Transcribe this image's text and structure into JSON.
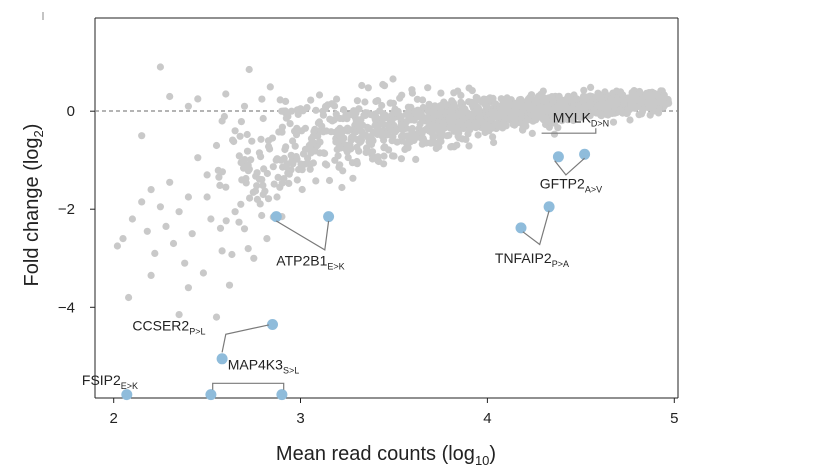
{
  "chart_data": {
    "type": "scatter",
    "title": "",
    "xlabel": {
      "main": "Mean read counts (log",
      "sub": "10",
      "end": ")"
    },
    "ylabel": {
      "main": "Fold change (log",
      "sub": "2",
      "end": ")"
    },
    "xlim": [
      1.9,
      5.02
    ],
    "ylim": [
      -5.85,
      1.9
    ],
    "xticks": [
      2,
      3,
      4,
      5
    ],
    "yticks": [
      0,
      -2,
      -4
    ],
    "reference_line_y": 0,
    "grid": false,
    "colors": {
      "background": "#c9c9c9",
      "highlight": "#8fbcdb",
      "reference": "#888888"
    },
    "background_series": {
      "name": "",
      "points": [
        [
          2.05,
          -2.6
        ],
        [
          2.02,
          -2.75
        ],
        [
          2.08,
          -3.8
        ],
        [
          2.1,
          -2.2
        ],
        [
          2.15,
          -1.85
        ],
        [
          2.18,
          -2.45
        ],
        [
          2.2,
          -1.6
        ],
        [
          2.22,
          -2.9
        ],
        [
          2.25,
          -1.95
        ],
        [
          2.28,
          -2.35
        ],
        [
          2.3,
          -1.45
        ],
        [
          2.32,
          -2.7
        ],
        [
          2.35,
          -2.05
        ],
        [
          2.38,
          -3.1
        ],
        [
          2.4,
          -1.75
        ],
        [
          2.42,
          -2.5
        ],
        [
          2.45,
          -0.95
        ],
        [
          2.48,
          -3.3
        ],
        [
          2.5,
          -1.3
        ],
        [
          2.52,
          -2.2
        ],
        [
          2.55,
          -0.7
        ],
        [
          2.58,
          -2.85
        ],
        [
          2.6,
          -1.55
        ],
        [
          2.62,
          -3.55
        ],
        [
          2.65,
          -0.4
        ],
        [
          2.68,
          -1.9
        ],
        [
          2.7,
          -2.4
        ],
        [
          2.72,
          -1.1
        ],
        [
          2.75,
          -3.0
        ],
        [
          2.78,
          -0.85
        ],
        [
          2.8,
          -1.7
        ],
        [
          2.82,
          -2.6
        ],
        [
          2.85,
          -0.55
        ],
        [
          2.88,
          -1.35
        ],
        [
          2.9,
          -2.15
        ],
        [
          2.25,
          0.9
        ],
        [
          2.15,
          -0.5
        ],
        [
          2.3,
          0.3
        ],
        [
          2.45,
          0.25
        ],
        [
          2.6,
          0.35
        ],
        [
          2.7,
          0.1
        ],
        [
          2.8,
          -0.15
        ],
        [
          2.35,
          -4.15
        ],
        [
          2.55,
          -4.2
        ],
        [
          2.4,
          -3.6
        ],
        [
          2.2,
          -3.35
        ],
        [
          2.65,
          -2.05
        ],
        [
          2.5,
          -1.75
        ],
        [
          2.58,
          -0.2
        ],
        [
          2.4,
          0.1
        ],
        [
          2.92,
          0.2
        ],
        [
          2.95,
          -0.9
        ],
        [
          2.98,
          -0.35
        ],
        [
          3.0,
          0.05
        ]
      ],
      "density_cloud": {
        "seed": 13,
        "count": 1500,
        "x_range": [
          2.55,
          4.97
        ],
        "trend_x": [
          2.6,
          3.0,
          3.4,
          3.8,
          4.2,
          4.6,
          5.0
        ],
        "trend_y": [
          -1.5,
          -0.75,
          -0.35,
          -0.15,
          0.0,
          0.12,
          0.22
        ],
        "spread_x": [
          2.6,
          3.0,
          3.4,
          3.8,
          4.2,
          4.6,
          5.0
        ],
        "spread_y": [
          0.8,
          0.52,
          0.34,
          0.24,
          0.17,
          0.12,
          0.08
        ]
      }
    },
    "highlighted_points": [
      {
        "name": "MYLK",
        "x": 4.38,
        "y": -0.93
      },
      {
        "name": "MYLK",
        "x": 4.52,
        "y": -0.88
      },
      {
        "name": "GFTP2",
        "x": 4.33,
        "y": -1.95
      },
      {
        "name": "TNFAIP2",
        "x": 4.18,
        "y": -2.38
      },
      {
        "name": "ATP2B1",
        "x": 2.87,
        "y": -2.15
      },
      {
        "name": "ATP2B1",
        "x": 3.15,
        "y": -2.15
      },
      {
        "name": "CCSER2",
        "x": 2.85,
        "y": -4.35
      },
      {
        "name": "CCSER2",
        "x": 2.58,
        "y": -5.05
      },
      {
        "name": "FSIP2",
        "x": 2.07,
        "y": -5.78
      },
      {
        "name": "MAP4K3",
        "x": 2.52,
        "y": -5.78
      },
      {
        "name": "MAP4K3",
        "x": 2.9,
        "y": -5.78
      }
    ],
    "annotations": [
      {
        "id": "mylk",
        "main": "MYLK",
        "sub": "D>N",
        "label_x": 4.35,
        "label_y": -0.23
      },
      {
        "id": "gftp2",
        "main": "GFTP2",
        "sub": "A>V",
        "label_x": 4.28,
        "label_y": -1.58
      },
      {
        "id": "tnfaip2",
        "main": "TNFAIP2",
        "sub": "P>A",
        "label_x": 4.04,
        "label_y": -3.1
      },
      {
        "id": "atp2b1",
        "main": "ATP2B1",
        "sub": "E>K",
        "label_x": 2.87,
        "label_y": -3.15
      },
      {
        "id": "ccser2",
        "main": "CCSER2",
        "sub": "P>L",
        "label_x": 2.1,
        "label_y": -4.47
      },
      {
        "id": "map4k3",
        "main": "MAP4K3",
        "sub": "S>L",
        "label_x": 2.61,
        "label_y": -5.27
      },
      {
        "id": "fsip2",
        "main": "FSIP2",
        "sub": "E>K",
        "label_x": 1.83,
        "label_y": -5.58
      }
    ],
    "leaders": [
      {
        "id": "mylk",
        "path": [
          [
            4.58,
            -0.35
          ],
          [
            4.58,
            -0.45
          ],
          [
            4.29,
            -0.45
          ]
        ]
      },
      {
        "id": "gftp2",
        "path": [
          [
            4.36,
            -1.01
          ],
          [
            4.42,
            -1.3
          ],
          [
            4.52,
            -0.96
          ]
        ]
      },
      {
        "id": "tnfaip2",
        "path": [
          [
            4.33,
            -2.03
          ],
          [
            4.28,
            -2.72
          ],
          [
            4.19,
            -2.46
          ]
        ]
      },
      {
        "id": "atp2b1",
        "path": [
          [
            2.87,
            -2.24
          ],
          [
            3.13,
            -2.83
          ],
          [
            3.15,
            -2.24
          ]
        ]
      },
      {
        "id": "ccser2",
        "path": [
          [
            2.83,
            -4.36
          ],
          [
            2.6,
            -4.55
          ],
          [
            2.58,
            -4.92
          ]
        ]
      },
      {
        "id": "map4k3",
        "path": [
          [
            2.53,
            -5.68
          ],
          [
            2.53,
            -5.55
          ],
          [
            2.91,
            -5.55
          ],
          [
            2.91,
            -5.68
          ]
        ]
      }
    ]
  }
}
